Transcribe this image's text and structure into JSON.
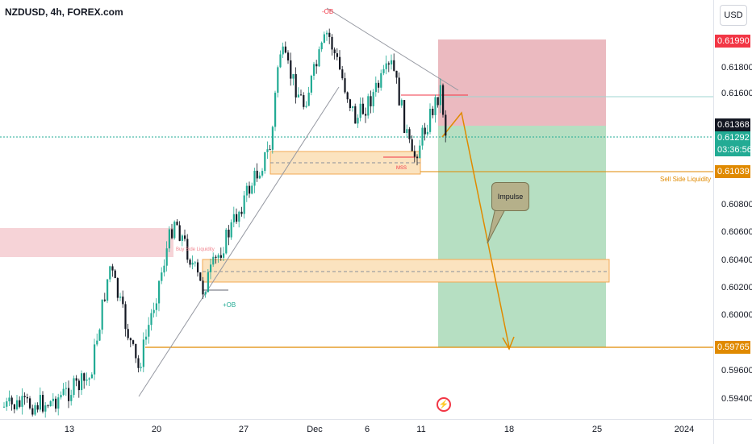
{
  "symbol_title": "NZDUSD, 4h, FOREX.com",
  "currency_button": "USD",
  "price_ticks": [
    "0.61800",
    "0.61600",
    "0.60800",
    "0.60600",
    "0.60400",
    "0.60200",
    "0.60000",
    "0.59600",
    "0.59400"
  ],
  "price_labels": {
    "stop": {
      "text": "0.61990",
      "color": "#f23645"
    },
    "last_close": {
      "text": "0.61368",
      "color": "#131722"
    },
    "current": {
      "text": "0.61292",
      "color": "#22ab94"
    },
    "countdown": {
      "text": "03:36:56",
      "color": "#22ab94"
    },
    "liquidity": {
      "text": "0.61039",
      "color": "#e08a00"
    },
    "target": {
      "text": "0.59765",
      "color": "#e08a00"
    }
  },
  "time_ticks": [
    "13",
    "20",
    "27",
    "Dec",
    "6",
    "11",
    "18",
    "25",
    "2024"
  ],
  "annotations": {
    "ob_top": "-OB",
    "ob_bottom": "+OB",
    "mss": "MSS",
    "buy_side": "Buy Side Liquidity",
    "sell_side": "Sell Side Liquidity",
    "impulse": "Impulse"
  },
  "colors": {
    "bull": "#22ab94",
    "bear": "#131722",
    "stop_zone": "#f7c6cb",
    "target_zone": "#b8e3c8",
    "orange": "#e08a00",
    "zone_fill": "#fbe3bf"
  }
}
